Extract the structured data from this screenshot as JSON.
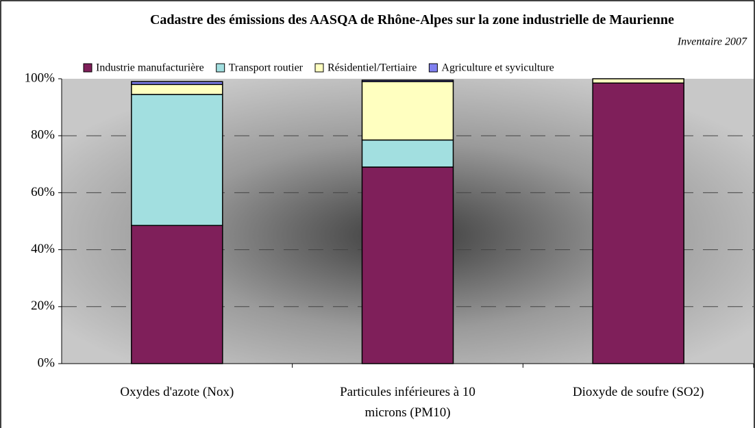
{
  "chart_data": {
    "type": "stacked_bar",
    "title": "Cadastre des émissions des AASQA de Rhône-Alpes sur la zone industrielle de Maurienne",
    "subtitle": "Inventaire 2007",
    "categories": [
      "Oxydes d'azote (Nox)",
      "Particules inférieures à 10 microns (PM10)",
      "Dioxyde de soufre (SO2)"
    ],
    "series": [
      {
        "name": "Industrie manufacturière",
        "color": "#7f1f5a",
        "values": [
          48.5,
          69,
          98.5
        ]
      },
      {
        "name": "Transport routier",
        "color": "#a2dfe0",
        "values": [
          46,
          9.5,
          0
        ]
      },
      {
        "name": "Résidentiel/Tertiaire",
        "color": "#ffffc0",
        "values": [
          3.5,
          20.5,
          1.5
        ]
      },
      {
        "name": "Agriculture et syviculture",
        "color": "#8080f0",
        "values": [
          1,
          0.5,
          0
        ]
      }
    ],
    "ylim": [
      0,
      100
    ],
    "yticks": [
      {
        "value": 0,
        "label": "0%"
      },
      {
        "value": 20,
        "label": "20%"
      },
      {
        "value": 40,
        "label": "40%"
      },
      {
        "value": 60,
        "label": "60%"
      },
      {
        "value": 80,
        "label": "80%"
      },
      {
        "value": 100,
        "label": "100%"
      }
    ],
    "grid": true,
    "legend": "top"
  }
}
